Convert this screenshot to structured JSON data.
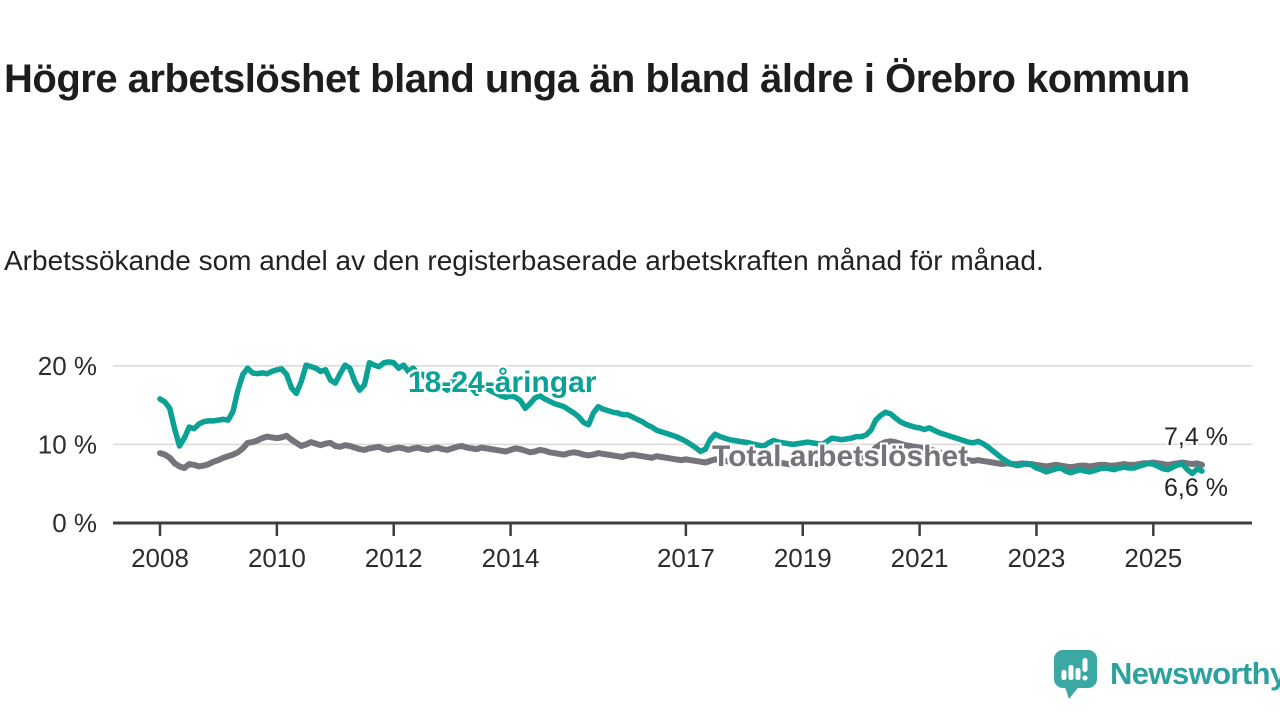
{
  "header": {
    "title": "Högre arbetslöshet bland unga än bland äldre i Örebro kommun",
    "subtitle": "Arbetssökande som andel av den registerbaserade arbetskraften månad för månad."
  },
  "chart_data": {
    "type": "line",
    "x_unit": "month",
    "x_start": "2008-01",
    "x_end": "2025-11",
    "x_ticks": [
      2008,
      2010,
      2012,
      2014,
      2017,
      2019,
      2021,
      2023,
      2025
    ],
    "y_ticks": [
      {
        "value": 0,
        "label": "0 %"
      },
      {
        "value": 10,
        "label": "10 %"
      },
      {
        "value": 20,
        "label": "20 %"
      }
    ],
    "ylim": [
      0,
      22
    ],
    "grid": "horizontal",
    "axis_color": "#3d3d3d",
    "grid_color": "#d9d9d9",
    "series": [
      {
        "name": "Total arbetslöshet",
        "color": "#76747b",
        "end_label": "7,4 %",
        "values": [
          8.9,
          8.7,
          8.3,
          7.6,
          7.2,
          7.0,
          7.5,
          7.4,
          7.2,
          7.3,
          7.5,
          7.8,
          8.0,
          8.3,
          8.5,
          8.7,
          9.0,
          9.5,
          10.2,
          10.3,
          10.5,
          10.8,
          11.0,
          10.9,
          10.8,
          10.9,
          11.1,
          10.6,
          10.2,
          9.8,
          10.0,
          10.3,
          10.1,
          9.9,
          10.1,
          10.2,
          9.8,
          9.7,
          9.9,
          9.8,
          9.6,
          9.4,
          9.3,
          9.5,
          9.6,
          9.7,
          9.4,
          9.3,
          9.5,
          9.6,
          9.5,
          9.3,
          9.5,
          9.6,
          9.4,
          9.3,
          9.5,
          9.6,
          9.4,
          9.3,
          9.5,
          9.7,
          9.8,
          9.6,
          9.5,
          9.4,
          9.6,
          9.5,
          9.4,
          9.3,
          9.2,
          9.1,
          9.3,
          9.5,
          9.4,
          9.2,
          9.0,
          9.1,
          9.3,
          9.2,
          9.0,
          8.9,
          8.8,
          8.7,
          8.9,
          9.0,
          8.9,
          8.7,
          8.6,
          8.7,
          8.9,
          8.8,
          8.7,
          8.6,
          8.5,
          8.4,
          8.6,
          8.7,
          8.6,
          8.5,
          8.4,
          8.3,
          8.5,
          8.4,
          8.3,
          8.2,
          8.1,
          8.0,
          8.1,
          8.0,
          7.9,
          7.8,
          7.7,
          7.9,
          8.1,
          8.0,
          7.9,
          7.8,
          7.7,
          7.6,
          7.7,
          7.8,
          7.7,
          7.6,
          7.5,
          7.6,
          7.8,
          7.7,
          7.6,
          7.5,
          7.4,
          7.5,
          7.6,
          7.7,
          7.6,
          7.5,
          7.4,
          7.6,
          7.8,
          7.7,
          7.8,
          7.9,
          8.0,
          8.1,
          8.2,
          8.4,
          8.9,
          9.6,
          10.0,
          10.3,
          10.4,
          10.3,
          10.1,
          9.9,
          9.8,
          9.7,
          9.6,
          9.5,
          9.4,
          9.2,
          9.0,
          8.8,
          8.6,
          8.5,
          8.3,
          8.1,
          8.0,
          7.9,
          8.0,
          7.9,
          7.8,
          7.7,
          7.6,
          7.5,
          7.6,
          7.5,
          7.5,
          7.6,
          7.5,
          7.5,
          7.4,
          7.3,
          7.2,
          7.3,
          7.4,
          7.3,
          7.2,
          7.1,
          7.2,
          7.3,
          7.3,
          7.2,
          7.3,
          7.4,
          7.4,
          7.3,
          7.3,
          7.4,
          7.5,
          7.4,
          7.4,
          7.5,
          7.6,
          7.6,
          7.7,
          7.6,
          7.5,
          7.4,
          7.5,
          7.6,
          7.7,
          7.6,
          7.5,
          7.6,
          7.4
        ]
      },
      {
        "name": "18-24-åringar",
        "color": "#0ca195",
        "end_label": "6,6 %",
        "values": [
          15.8,
          15.4,
          14.6,
          12.0,
          9.8,
          10.8,
          12.2,
          12.0,
          12.6,
          12.9,
          13.0,
          13.0,
          13.1,
          13.2,
          13.1,
          14.2,
          16.9,
          18.9,
          19.7,
          19.1,
          19.0,
          19.1,
          19.0,
          19.3,
          19.5,
          19.6,
          18.9,
          17.2,
          16.5,
          18.0,
          20.1,
          19.9,
          19.7,
          19.3,
          19.5,
          18.2,
          17.8,
          19.0,
          20.1,
          19.7,
          18.0,
          16.9,
          17.6,
          20.4,
          20.1,
          19.9,
          20.4,
          20.5,
          20.4,
          19.7,
          20.1,
          19.3,
          19.7,
          19.0,
          18.9,
          18.2,
          18.0,
          17.8,
          17.3,
          16.9,
          18.0,
          18.5,
          18.3,
          17.8,
          17.2,
          16.5,
          17.5,
          17.2,
          16.8,
          16.5,
          16.2,
          16.0,
          16.2,
          16.0,
          15.6,
          14.6,
          15.2,
          15.9,
          16.2,
          15.8,
          15.5,
          15.2,
          15.0,
          14.8,
          14.4,
          14.0,
          13.5,
          12.8,
          12.5,
          14.0,
          14.8,
          14.5,
          14.3,
          14.1,
          14.0,
          13.8,
          13.8,
          13.5,
          13.2,
          12.9,
          12.5,
          12.2,
          11.8,
          11.6,
          11.4,
          11.2,
          11.0,
          10.7,
          10.4,
          10.0,
          9.6,
          9.1,
          9.4,
          10.6,
          11.3,
          11.0,
          10.8,
          10.6,
          10.5,
          10.4,
          10.3,
          10.2,
          10.0,
          9.9,
          9.8,
          10.2,
          10.5,
          10.3,
          10.2,
          10.1,
          10.0,
          10.1,
          10.2,
          10.3,
          10.2,
          10.1,
          10.0,
          10.4,
          10.8,
          10.7,
          10.6,
          10.7,
          10.8,
          11.0,
          11.0,
          11.2,
          11.8,
          13.1,
          13.7,
          14.1,
          13.9,
          13.4,
          12.9,
          12.6,
          12.4,
          12.2,
          12.1,
          11.9,
          12.1,
          11.8,
          11.5,
          11.3,
          11.1,
          10.9,
          10.7,
          10.5,
          10.3,
          10.2,
          10.4,
          10.1,
          9.7,
          9.2,
          8.7,
          8.2,
          7.8,
          7.5,
          7.3,
          7.4,
          7.6,
          7.4,
          7.0,
          6.8,
          6.5,
          6.7,
          6.9,
          7.0,
          6.6,
          6.4,
          6.6,
          6.8,
          6.6,
          6.5,
          6.7,
          6.9,
          7.0,
          6.9,
          6.8,
          7.0,
          7.1,
          7.0,
          7.0,
          7.2,
          7.4,
          7.6,
          7.5,
          7.2,
          6.9,
          6.8,
          7.1,
          7.4,
          7.5,
          6.8,
          6.3,
          6.9,
          6.6
        ]
      }
    ]
  },
  "footer": {
    "brand": "Newsworthy",
    "brand_color": "#2ba29d",
    "logo_icon": "bar-chart-speech-bubble"
  }
}
